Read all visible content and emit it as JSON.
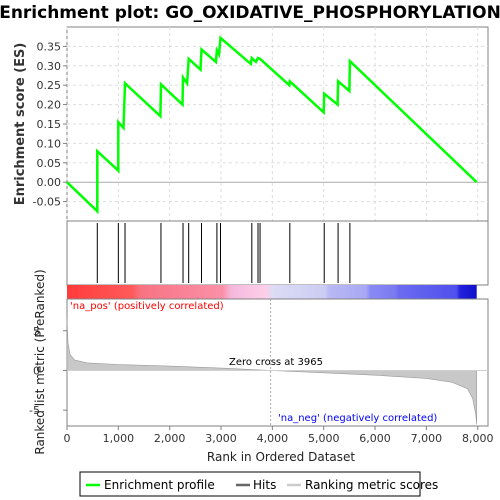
{
  "chart_data": {
    "type": "line",
    "title": "Enrichment plot: GO_OXIDATIVE_PHOSPHORYLATION",
    "xlabel": "Rank in Ordered Dataset",
    "xlim": [
      0,
      8200
    ],
    "x_ticks": [
      0,
      1000,
      2000,
      3000,
      4000,
      5000,
      6000,
      7000,
      8000
    ],
    "x_tick_labels": [
      "0",
      "1,000",
      "2,000",
      "3,000",
      "4,000",
      "5,000",
      "6,000",
      "7,000",
      "8,000"
    ],
    "es_panel": {
      "ylabel": "Enrichment score (ES)",
      "ylim": [
        -0.1,
        0.4
      ],
      "y_ticks": [
        -0.05,
        0.0,
        0.05,
        0.1,
        0.15,
        0.2,
        0.25,
        0.3,
        0.35
      ],
      "y_tick_labels": [
        "-0.05",
        "0.00",
        "0.05",
        "0.10",
        "0.15",
        "0.20",
        "0.25",
        "0.30",
        "0.35"
      ],
      "grid": true,
      "series": [
        {
          "name": "Enrichment profile",
          "color": "#00ff00",
          "points": [
            [
              0,
              0.0
            ],
            [
              590,
              -0.075
            ],
            [
              590,
              0.08
            ],
            [
              1000,
              0.03
            ],
            [
              1000,
              0.155
            ],
            [
              1100,
              0.14
            ],
            [
              1130,
              0.255
            ],
            [
              1820,
              0.17
            ],
            [
              1830,
              0.252
            ],
            [
              2250,
              0.2
            ],
            [
              2260,
              0.27
            ],
            [
              2340,
              0.255
            ],
            [
              2370,
              0.318
            ],
            [
              2600,
              0.29
            ],
            [
              2620,
              0.342
            ],
            [
              2900,
              0.31
            ],
            [
              2920,
              0.34
            ],
            [
              2960,
              0.33
            ],
            [
              2990,
              0.372
            ],
            [
              3580,
              0.305
            ],
            [
              3600,
              0.32
            ],
            [
              3680,
              0.31
            ],
            [
              3720,
              0.32
            ],
            [
              3760,
              0.318
            ],
            [
              4330,
              0.25
            ],
            [
              4340,
              0.26
            ],
            [
              5000,
              0.18
            ],
            [
              5010,
              0.228
            ],
            [
              5270,
              0.2
            ],
            [
              5280,
              0.26
            ],
            [
              5500,
              0.235
            ],
            [
              5510,
              0.312
            ],
            [
              7980,
              0.0
            ]
          ]
        }
      ]
    },
    "hits_panel": {
      "hit_ranks": [
        590,
        1000,
        1130,
        1830,
        2260,
        2370,
        2620,
        2920,
        2990,
        3600,
        3720,
        3760,
        4340,
        5010,
        5280,
        5510
      ]
    },
    "ranked_panel": {
      "ylabel": "Ranked list metric (PreRanked)",
      "ylim": [
        -7,
        9
      ],
      "y_ticks": [
        -5,
        0,
        5
      ],
      "y_tick_labels": [
        "-5",
        "0",
        "5"
      ],
      "max_rank": 7980,
      "profile": [
        [
          0,
          6.5
        ],
        [
          20,
          3.5
        ],
        [
          60,
          2.0
        ],
        [
          150,
          1.3
        ],
        [
          400,
          0.95
        ],
        [
          1000,
          0.75
        ],
        [
          2000,
          0.55
        ],
        [
          3000,
          0.3
        ],
        [
          3965,
          0.0
        ],
        [
          5000,
          -0.3
        ],
        [
          6000,
          -0.6
        ],
        [
          7000,
          -1.0
        ],
        [
          7500,
          -1.5
        ],
        [
          7800,
          -2.3
        ],
        [
          7900,
          -3.5
        ],
        [
          7960,
          -5.5
        ],
        [
          7980,
          -6.8
        ]
      ]
    },
    "annotations": {
      "na_pos": "'na_pos' (positively correlated)",
      "na_neg": "'na_neg' (negatively correlated)",
      "zero_cross": "Zero cross at 3965",
      "zero_cross_rank": 3965
    },
    "legend": [
      {
        "label": "Enrichment profile",
        "color": "#00ff00",
        "style": "line"
      },
      {
        "label": "Hits",
        "color": "#666666",
        "style": "line"
      },
      {
        "label": "Ranking metric scores",
        "color": "#cccccc",
        "style": "line"
      }
    ],
    "colors": {
      "pos_red": "#ff0000",
      "neg_blue": "#0000ff",
      "grid": "#dddddd",
      "axis": "#808080"
    }
  }
}
